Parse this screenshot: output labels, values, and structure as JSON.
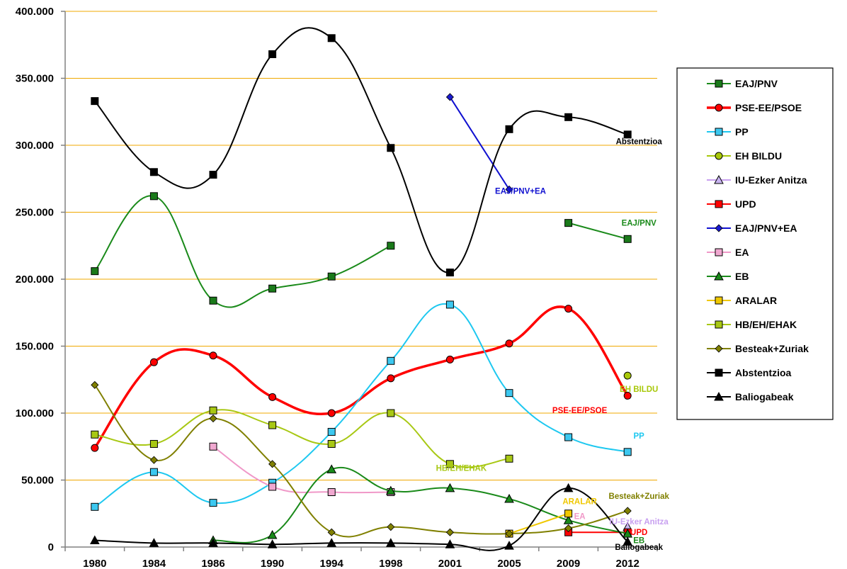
{
  "chart_data": {
    "type": "line",
    "title": "",
    "xlabel": "",
    "ylabel": "",
    "categories": [
      "1980",
      "1984",
      "1986",
      "1990",
      "1994",
      "1998",
      "2001",
      "2005",
      "2009",
      "2012"
    ],
    "ylim": [
      0,
      400000
    ],
    "yticks": [
      0,
      50000,
      100000,
      150000,
      200000,
      250000,
      300000,
      350000,
      400000
    ],
    "ytick_labels": [
      "0",
      "50.000",
      "100.000",
      "150.000",
      "200.000",
      "250.000",
      "300.000",
      "350.000",
      "400.000"
    ],
    "grid": "horizontal",
    "legend_position": "right",
    "series": [
      {
        "name": "EAJ/PNV",
        "color": "#1a8a1a",
        "marker": "square",
        "marker_fill": "#1a7a1a",
        "values": [
          206000,
          262000,
          184000,
          193000,
          202000,
          225000,
          null,
          null,
          242000,
          230000
        ]
      },
      {
        "name": "PSE-EE/PSOE",
        "color": "#ff0000",
        "marker": "circle",
        "marker_fill": "#ff0000",
        "values": [
          74000,
          138000,
          143000,
          112000,
          100000,
          126000,
          140000,
          152000,
          178000,
          113000
        ]
      },
      {
        "name": "PP",
        "color": "#1ec8f0",
        "marker": "square",
        "marker_fill": "#3cc8f0",
        "values": [
          30000,
          56000,
          33000,
          48000,
          86000,
          139000,
          181000,
          115000,
          82000,
          71000
        ]
      },
      {
        "name": "EH BILDU",
        "color": "#a8c80a",
        "marker": "circle",
        "marker_fill": "#a8c80a",
        "values": [
          null,
          null,
          null,
          null,
          null,
          null,
          null,
          null,
          null,
          128000
        ]
      },
      {
        "name": "IU-Ezker Anitza",
        "color": "#c8a0f0",
        "marker": "triangle",
        "marker_fill": "#c8b4f0",
        "values": [
          null,
          null,
          null,
          null,
          null,
          null,
          null,
          null,
          null,
          15000
        ]
      },
      {
        "name": "UPD",
        "color": "#ff0000",
        "marker": "square",
        "marker_fill": "#ff0000",
        "values": [
          null,
          null,
          null,
          null,
          null,
          null,
          null,
          null,
          11000,
          11000
        ]
      },
      {
        "name": "EAJ/PNV+EA",
        "color": "#1010d0",
        "marker": "diamond",
        "marker_fill": "#1a1ad0",
        "values": [
          null,
          null,
          null,
          null,
          null,
          null,
          336000,
          267000,
          null,
          null
        ]
      },
      {
        "name": "EA",
        "color": "#f098c8",
        "marker": "square",
        "marker_fill": "#f0a8d0",
        "values": [
          null,
          null,
          75000,
          45000,
          41000,
          41000,
          null,
          null,
          null,
          null
        ]
      },
      {
        "name": "EB",
        "color": "#1a8a1a",
        "marker": "triangle",
        "marker_fill": "#1a8a1a",
        "values": [
          null,
          null,
          5000,
          9000,
          58000,
          42000,
          44000,
          36000,
          20000,
          10000
        ]
      },
      {
        "name": "ARALAR",
        "color": "#f0c800",
        "marker": "square",
        "marker_fill": "#f0c800",
        "values": [
          null,
          null,
          null,
          null,
          null,
          null,
          null,
          10000,
          25000,
          null
        ]
      },
      {
        "name": "HB/EH/EHAK",
        "color": "#a8c814",
        "marker": "square",
        "marker_fill": "#a8c814",
        "values": [
          84000,
          77000,
          102000,
          91000,
          77000,
          100000,
          62000,
          66000,
          null,
          null
        ]
      },
      {
        "name": "Besteak+Zuriak",
        "color": "#808000",
        "marker": "diamond",
        "marker_fill": "#808000",
        "values": [
          121000,
          65000,
          96000,
          62000,
          11000,
          15000,
          11000,
          10000,
          14000,
          27000
        ]
      },
      {
        "name": "Abstentzioa",
        "color": "#000000",
        "marker": "square",
        "marker_fill": "#000000",
        "values": [
          333000,
          280000,
          278000,
          368000,
          380000,
          298000,
          205000,
          312000,
          321000,
          308000
        ]
      },
      {
        "name": "Baliogabeak",
        "color": "#000000",
        "marker": "triangle",
        "marker_fill": "#000000",
        "values": [
          5000,
          3000,
          3000,
          2000,
          3000,
          3000,
          2000,
          1000,
          44000,
          4000
        ]
      }
    ],
    "annotations": [
      {
        "text": "Abstentzioa",
        "color": "#000000",
        "x": "2012",
        "y": 303000
      },
      {
        "text": "EAJ/PNV+EA",
        "color": "#1010d0",
        "x": "2005",
        "y": 266000
      },
      {
        "text": "EAJ/PNV",
        "color": "#1a8a1a",
        "x": "2012",
        "y": 242000
      },
      {
        "text": "EH BILDU",
        "color": "#a8c80a",
        "x": "2012",
        "y": 118000
      },
      {
        "text": "PSE-EE/PSOE",
        "color": "#ff0000",
        "x": "2009",
        "y": 102000
      },
      {
        "text": "PP",
        "color": "#1ec8f0",
        "x": "2012",
        "y": 83000
      },
      {
        "text": "HB/EH/EHAK",
        "color": "#a8c814",
        "x": "2001",
        "y": 59000
      },
      {
        "text": "Besteak+Zuriak",
        "color": "#808000",
        "x": "2012",
        "y": 38000
      },
      {
        "text": "ARALAR",
        "color": "#f0c800",
        "x": "2009",
        "y": 34000
      },
      {
        "text": "EA",
        "color": "#f098c8",
        "x": "2009",
        "y": 23000
      },
      {
        "text": "IU-Ezker Anitza",
        "color": "#c8a0f0",
        "x": "2012",
        "y": 19000
      },
      {
        "text": "UPD",
        "color": "#ff0000",
        "x": "2012",
        "y": 11000
      },
      {
        "text": "EB",
        "color": "#1a8a1a",
        "x": "2012",
        "y": 5000
      },
      {
        "text": "Baliogabeak",
        "color": "#000000",
        "x": "2012",
        "y": 0
      }
    ]
  }
}
